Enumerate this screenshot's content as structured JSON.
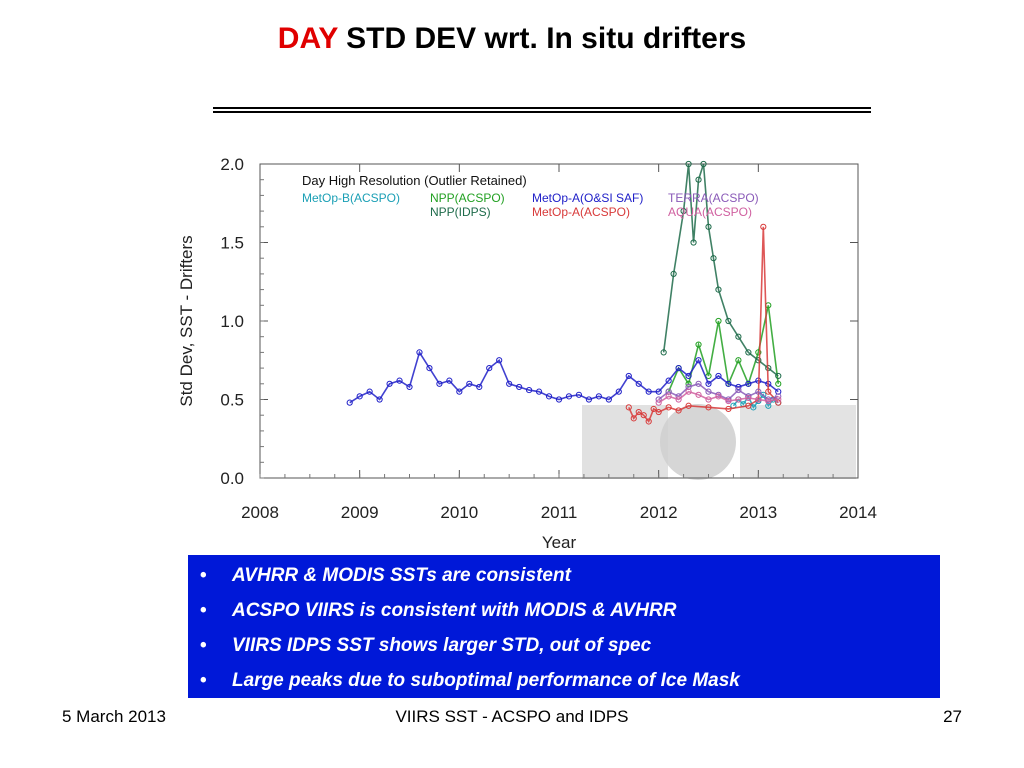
{
  "slide": {
    "title_highlight": "DAY",
    "title_rest": " STD DEV wrt. In situ drifters",
    "colors": {
      "title_highlight": "#e00000",
      "bullet_box": "#0018d8",
      "bullet_text": "#ffffff"
    },
    "bullets": [
      "AVHRR & MODIS SSTs are consistent",
      "ACSPO VIIRS is consistent with MODIS & AVHRR",
      "VIIRS IDPS SST shows larger STD, out of spec",
      "Large peaks due to suboptimal performance of Ice Mask"
    ],
    "bullet_symbol": "•",
    "footer": {
      "date": "5 March 2013",
      "center": "VIIRS SST - ACSPO and IDPS",
      "page": "27"
    },
    "watermark_logos": [
      "squam-logo",
      "noaa-logo",
      "star-logo"
    ]
  },
  "chart_data": {
    "type": "scatter",
    "annotation": "Day High Resolution (Outlier Retained)",
    "xlabel": "Year",
    "ylabel": "Std Dev,  SST - Drifters",
    "xlim": [
      2008,
      2014
    ],
    "ylim": [
      0.0,
      2.0
    ],
    "x_ticks": [
      "2008",
      "2009",
      "2010",
      "2011",
      "2012",
      "2013",
      "2014"
    ],
    "y_ticks": [
      "0.0",
      "0.5",
      "1.0",
      "1.5",
      "2.0"
    ],
    "legend_position": "top-left",
    "series": [
      {
        "name": "MetOp-B(ACSPO)",
        "color": "#1a9fb5",
        "x": [
          2012.75,
          2012.8,
          2012.85,
          2012.9,
          2012.95,
          2013.0,
          2013.05,
          2013.1,
          2013.15,
          2013.2
        ],
        "values": [
          0.46,
          0.5,
          0.47,
          0.52,
          0.45,
          0.49,
          0.53,
          0.46,
          0.5,
          0.48
        ]
      },
      {
        "name": "NPP(ACSPO)",
        "color": "#22a022",
        "x": [
          2012.1,
          2012.2,
          2012.3,
          2012.4,
          2012.5,
          2012.6,
          2012.7,
          2012.8,
          2012.9,
          2013.0,
          2013.1,
          2013.2
        ],
        "values": [
          0.55,
          0.7,
          0.6,
          0.85,
          0.65,
          1.0,
          0.6,
          0.75,
          0.6,
          0.8,
          1.1,
          0.6
        ]
      },
      {
        "name": "NPP(IDPS)",
        "color": "#1e6b4a",
        "x": [
          2012.05,
          2012.15,
          2012.25,
          2012.3,
          2012.35,
          2012.4,
          2012.45,
          2012.5,
          2012.55,
          2012.6,
          2012.7,
          2012.8,
          2012.9,
          2013.0,
          2013.1,
          2013.2
        ],
        "values": [
          0.8,
          1.3,
          1.7,
          2.0,
          1.5,
          1.9,
          2.0,
          1.6,
          1.4,
          1.2,
          1.0,
          0.9,
          0.8,
          0.75,
          0.7,
          0.65
        ]
      },
      {
        "name": "MetOp-A(O&SI SAF)",
        "color": "#2020c8",
        "x": [
          2008.9,
          2009.0,
          2009.1,
          2009.2,
          2009.3,
          2009.4,
          2009.5,
          2009.6,
          2009.7,
          2009.8,
          2009.9,
          2010.0,
          2010.1,
          2010.2,
          2010.3,
          2010.4,
          2010.5,
          2010.6,
          2010.7,
          2010.8,
          2010.9,
          2011.0,
          2011.1,
          2011.2,
          2011.3,
          2011.4,
          2011.5,
          2011.6,
          2011.7,
          2011.8,
          2011.9,
          2012.0,
          2012.1,
          2012.2,
          2012.3,
          2012.4,
          2012.5,
          2012.6,
          2012.7,
          2012.8,
          2012.9,
          2013.0,
          2013.1,
          2013.2
        ],
        "values": [
          0.48,
          0.52,
          0.55,
          0.5,
          0.6,
          0.62,
          0.58,
          0.8,
          0.7,
          0.6,
          0.62,
          0.55,
          0.6,
          0.58,
          0.7,
          0.75,
          0.6,
          0.58,
          0.56,
          0.55,
          0.52,
          0.5,
          0.52,
          0.53,
          0.5,
          0.52,
          0.5,
          0.55,
          0.65,
          0.6,
          0.55,
          0.55,
          0.62,
          0.7,
          0.65,
          0.75,
          0.6,
          0.65,
          0.6,
          0.58,
          0.6,
          0.62,
          0.6,
          0.55
        ]
      },
      {
        "name": "MetOp-A(ACSPO)",
        "color": "#d83a3a",
        "x": [
          2011.7,
          2011.75,
          2011.8,
          2011.85,
          2011.9,
          2011.95,
          2012.0,
          2012.1,
          2012.2,
          2012.3,
          2012.5,
          2012.7,
          2012.9,
          2013.0,
          2013.05,
          2013.1,
          2013.2
        ],
        "values": [
          0.45,
          0.38,
          0.42,
          0.4,
          0.36,
          0.44,
          0.42,
          0.45,
          0.43,
          0.46,
          0.45,
          0.44,
          0.46,
          0.5,
          1.6,
          0.55,
          0.48
        ]
      },
      {
        "name": "TERRA(ACSPO)",
        "color": "#8a5ab8",
        "x": [
          2012.0,
          2012.1,
          2012.2,
          2012.3,
          2012.4,
          2012.5,
          2012.6,
          2012.7,
          2012.8,
          2012.9,
          2013.0,
          2013.1,
          2013.2
        ],
        "values": [
          0.5,
          0.55,
          0.52,
          0.58,
          0.6,
          0.55,
          0.53,
          0.5,
          0.56,
          0.52,
          0.55,
          0.5,
          0.52
        ]
      },
      {
        "name": "AQUA(ACSPO)",
        "color": "#d060a0",
        "x": [
          2012.0,
          2012.1,
          2012.2,
          2012.3,
          2012.4,
          2012.5,
          2012.6,
          2012.7,
          2012.8,
          2012.9,
          2013.0,
          2013.1,
          2013.2
        ],
        "values": [
          0.48,
          0.52,
          0.5,
          0.55,
          0.53,
          0.5,
          0.52,
          0.49,
          0.5,
          0.51,
          0.5,
          0.49,
          0.5
        ]
      }
    ]
  }
}
